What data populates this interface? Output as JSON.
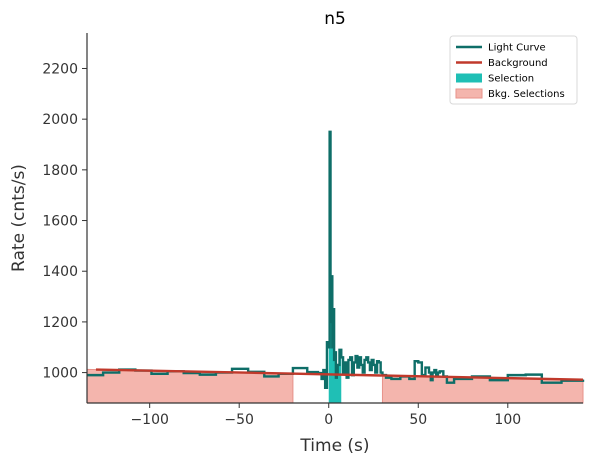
{
  "chart_data": {
    "type": "line",
    "title": "n5",
    "xlabel": "Time (s)",
    "ylabel": "Rate (cnts/s)",
    "xlim": [
      -135,
      142
    ],
    "ylim": [
      880,
      2340
    ],
    "xticks": [
      -100,
      -50,
      0,
      50,
      100
    ],
    "yticks": [
      1000,
      1200,
      1400,
      1600,
      1800,
      2000,
      2200
    ],
    "xtick_labels": [
      "−100",
      "−50",
      "0",
      "50",
      "100"
    ],
    "ytick_labels": [
      "1000",
      "1200",
      "1400",
      "1600",
      "1800",
      "2000",
      "2200"
    ],
    "grid": false,
    "legend_position": "top-right",
    "colors": {
      "light_curve": "#0e6e68",
      "background": "#c0392b",
      "selection": "#1fbfb5",
      "bkg_selection": "#f4b5ad"
    },
    "legend": [
      {
        "label": "Light Curve",
        "kind": "line",
        "color": "#0e6e68"
      },
      {
        "label": "Background",
        "kind": "line",
        "color": "#c0392b"
      },
      {
        "label": "Selection",
        "kind": "patch",
        "color": "#1fbfb5"
      },
      {
        "label": "Bkg. Selections",
        "kind": "patch",
        "color": "#f4b5ad"
      }
    ],
    "background_fit": {
      "x": [
        -130,
        142
      ],
      "y": [
        1012,
        972
      ]
    },
    "selection": [
      0,
      7
    ],
    "bkg_selections": [
      [
        -135,
        -20
      ],
      [
        30,
        142
      ]
    ],
    "light_curve": {
      "x": [
        -135,
        -126,
        -117,
        -108,
        -99,
        -90,
        -81,
        -72,
        -63,
        -54,
        -45,
        -36,
        -28,
        -20,
        -12,
        -6,
        -4,
        -3,
        -2,
        -1,
        0,
        0.5,
        1,
        1.5,
        2,
        2.5,
        3,
        3.5,
        4,
        4.5,
        5,
        6,
        7,
        8,
        9,
        10,
        11,
        12,
        13,
        14,
        15,
        16,
        17,
        18,
        19,
        20,
        21,
        22,
        23,
        24,
        25,
        26,
        27,
        28,
        29,
        30,
        32,
        35,
        40,
        45,
        48,
        50,
        52,
        54,
        56,
        57,
        58,
        59,
        60,
        61,
        62,
        64,
        66,
        70,
        80,
        90,
        100,
        110,
        119,
        130,
        142
      ],
      "y": [
        990,
        1000,
        1012,
        1008,
        995,
        1005,
        998,
        992,
        1000,
        1015,
        1003,
        985,
        995,
        1018,
        1002,
        998,
        975,
        1010,
        940,
        1120,
        1100,
        1950,
        1200,
        1380,
        1100,
        1250,
        1050,
        1080,
        980,
        1000,
        1030,
        1090,
        1060,
        1000,
        1040,
        980,
        1050,
        1060,
        990,
        1040,
        1065,
        1020,
        1060,
        1030,
        1000,
        1050,
        1060,
        1040,
        1010,
        1050,
        1030,
        1000,
        1045,
        1040,
        1000,
        990,
        980,
        975,
        985,
        975,
        1045,
        1040,
        990,
        1020,
        1000,
        970,
        1000,
        1010,
        990,
        1000,
        1005,
        985,
        960,
        975,
        985,
        970,
        990,
        992,
        960,
        968,
        972
      ]
    }
  }
}
